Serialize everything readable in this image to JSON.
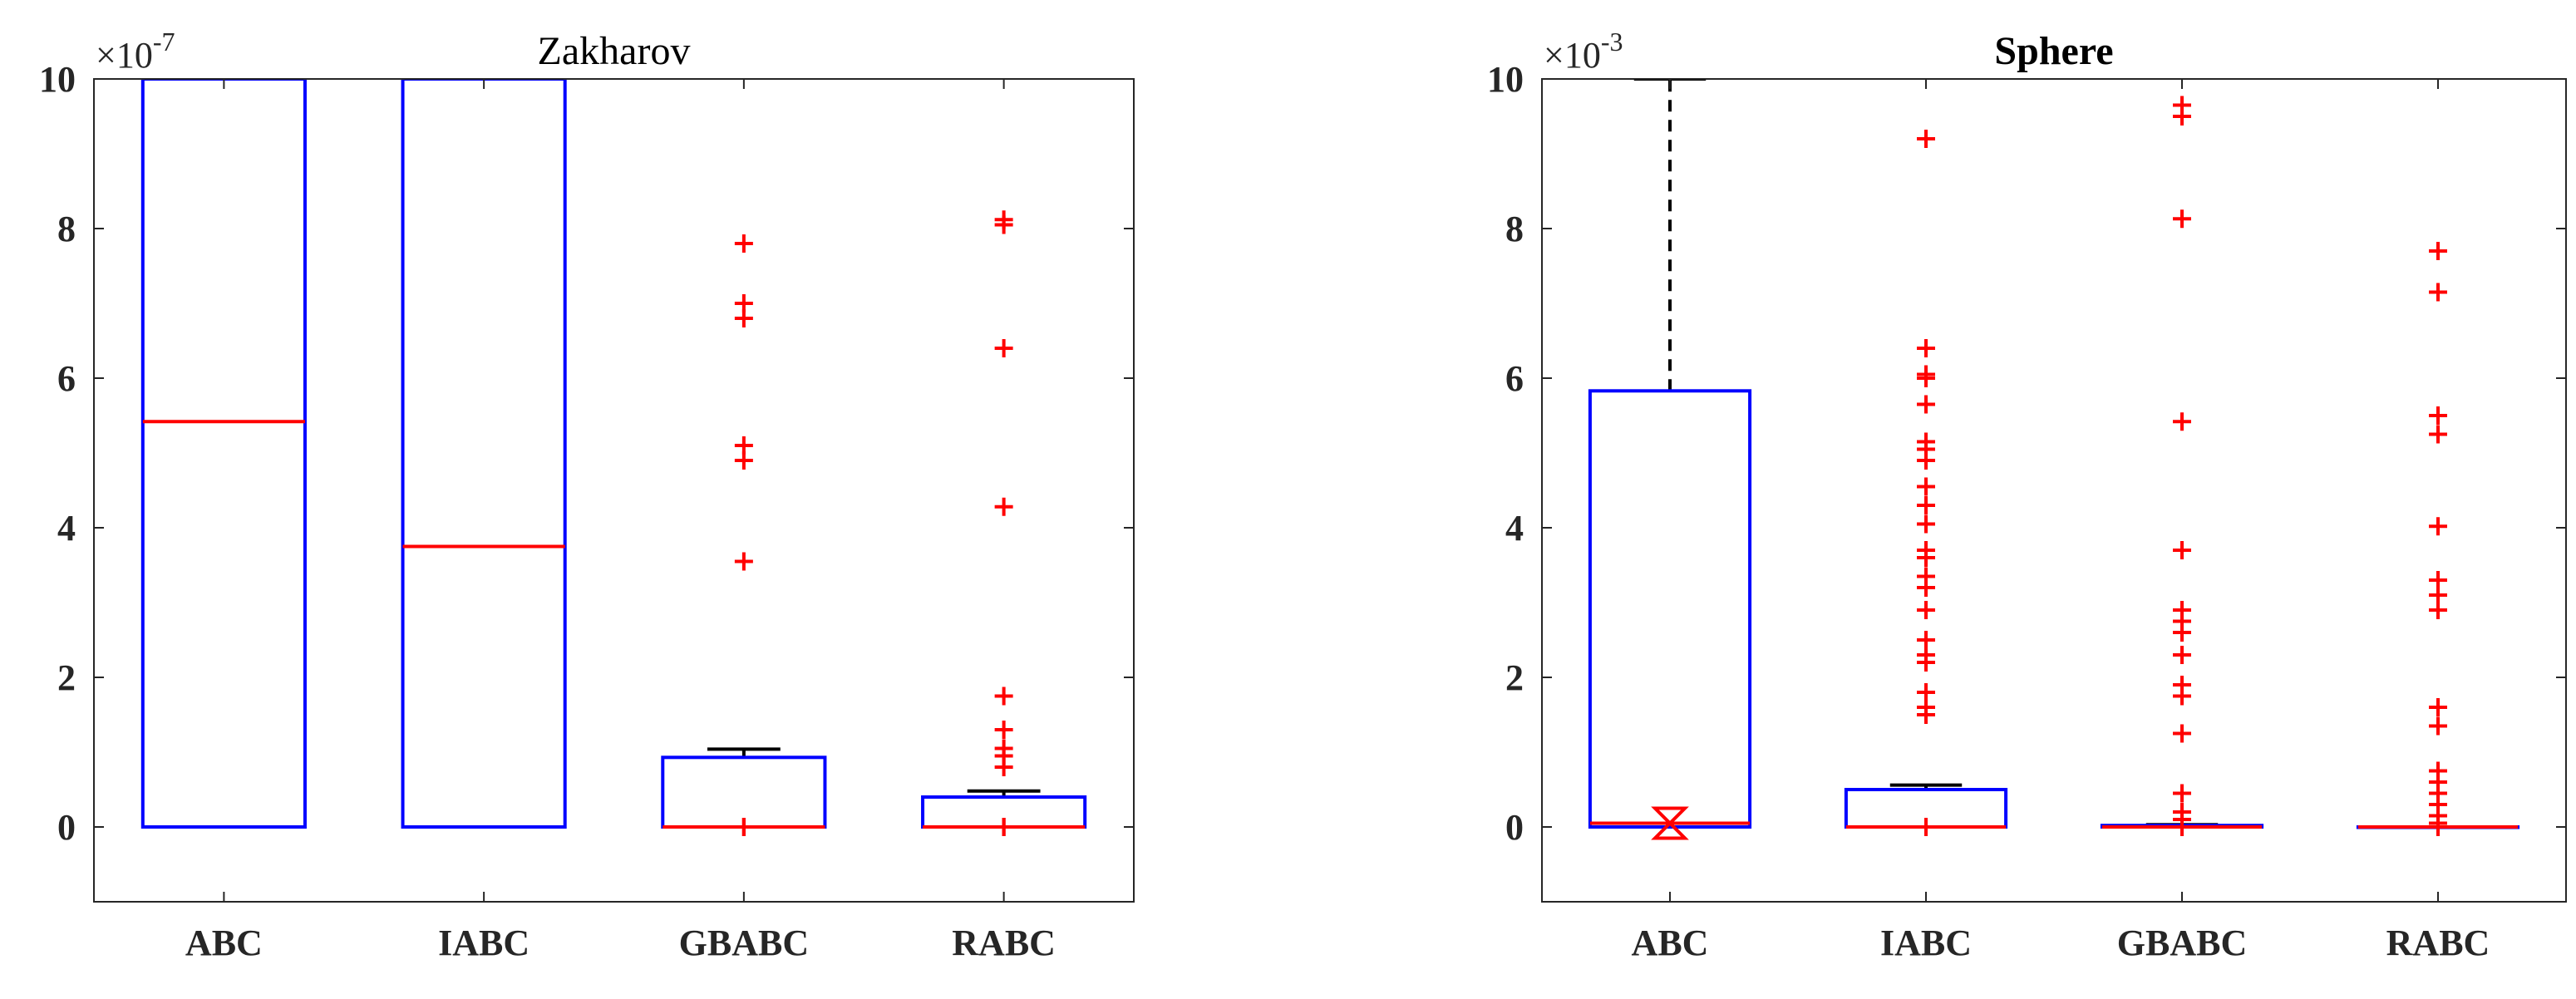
{
  "chart_data": [
    {
      "type": "box",
      "title": "Zakharov",
      "title_bold": false,
      "multiplier": {
        "base": "×10",
        "exponent": "-7"
      },
      "ylim": [
        -1,
        10
      ],
      "yticks": [
        0,
        2,
        4,
        6,
        8,
        10
      ],
      "categories": [
        "ABC",
        "IABC",
        "GBABC",
        "RABC"
      ],
      "colors": {
        "box": "#0000ff",
        "median": "#ff0000",
        "whisker": "#000000",
        "outlier": "#ff0000"
      },
      "boxes": [
        {
          "category": "ABC",
          "q1": 0,
          "median": 5.42,
          "q3": 10,
          "whisker_low": 0,
          "whisker_high": null,
          "outliers": []
        },
        {
          "category": "IABC",
          "q1": 0,
          "median": 3.75,
          "q3": 10,
          "whisker_low": 0,
          "whisker_high": null,
          "outliers": []
        },
        {
          "category": "GBABC",
          "q1": 0,
          "median": 0,
          "q3": 0.93,
          "whisker_low": 0,
          "whisker_high": 1.04,
          "outliers": [
            0,
            0,
            0,
            3.55,
            4.9,
            5.1,
            6.8,
            7.0,
            7.8
          ]
        },
        {
          "category": "RABC",
          "q1": 0,
          "median": 0,
          "q3": 0.4,
          "whisker_low": 0,
          "whisker_high": 0.48,
          "outliers": [
            0,
            0,
            0,
            0.8,
            0.95,
            1.05,
            1.3,
            1.75,
            4.28,
            6.4,
            8.05,
            8.12
          ]
        }
      ]
    },
    {
      "type": "box",
      "title": "Sphere",
      "title_bold": true,
      "multiplier": {
        "base": "×10",
        "exponent": "-3"
      },
      "ylim": [
        -1,
        10
      ],
      "yticks": [
        0,
        2,
        4,
        6,
        8,
        10
      ],
      "categories": [
        "ABC",
        "IABC",
        "GBABC",
        "RABC"
      ],
      "colors": {
        "box": "#0000ff",
        "median": "#ff0000",
        "whisker": "#000000",
        "outlier": "#ff0000"
      },
      "boxes": [
        {
          "category": "ABC",
          "q1": 0,
          "median": 0.05,
          "q3": 5.83,
          "whisker_low": 0,
          "whisker_high": 10,
          "outliers": [],
          "notch": true
        },
        {
          "category": "IABC",
          "q1": 0,
          "median": 0,
          "q3": 0.5,
          "whisker_low": 0,
          "whisker_high": 0.56,
          "outliers": [
            0,
            0,
            1.5,
            1.6,
            1.8,
            2.2,
            2.3,
            2.5,
            2.9,
            3.2,
            3.35,
            3.6,
            3.7,
            4.05,
            4.3,
            4.55,
            4.9,
            5.05,
            5.15,
            5.65,
            6.0,
            6.05,
            6.4,
            9.2
          ]
        },
        {
          "category": "GBABC",
          "q1": 0,
          "median": 0,
          "q3": 0.02,
          "whisker_low": 0,
          "whisker_high": 0.03,
          "outliers": [
            0,
            0.1,
            0.2,
            0.45,
            1.25,
            1.75,
            1.9,
            2.3,
            2.6,
            2.75,
            2.9,
            3.7,
            5.42,
            8.13,
            9.5,
            9.65
          ]
        },
        {
          "category": "RABC",
          "q1": 0,
          "median": 0,
          "q3": 0,
          "whisker_low": 0,
          "whisker_high": 0,
          "outliers": [
            0,
            0.05,
            0.15,
            0.3,
            0.45,
            0.6,
            0.75,
            1.35,
            1.6,
            2.9,
            3.1,
            3.3,
            4.02,
            5.25,
            5.5,
            7.15,
            7.7
          ]
        }
      ]
    }
  ]
}
